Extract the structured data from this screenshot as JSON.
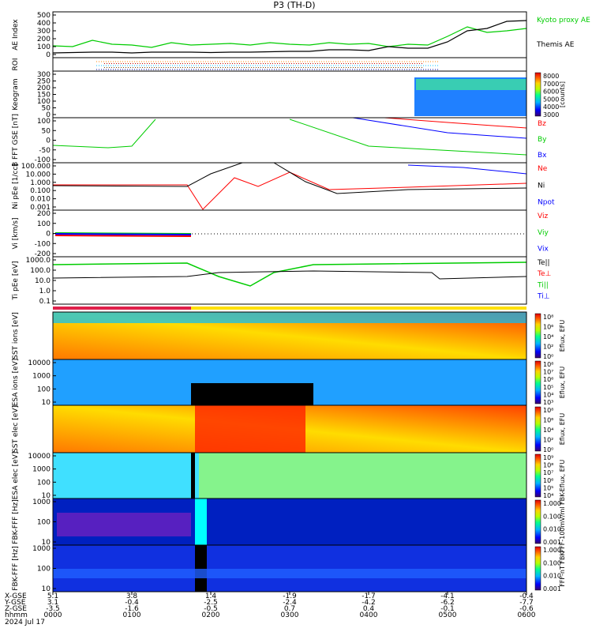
{
  "title": "P3 (TH-D)",
  "footer": {
    "row_labels": [
      "X-GSE",
      "Y-GSE",
      "Z-GSE",
      "hhmm",
      "2024 Jul 17"
    ],
    "ticks": [
      {
        "x": "5.1",
        "y": "3.1",
        "z": "-3.5",
        "t": "0000"
      },
      {
        "x": "3.8",
        "y": "-0.4",
        "z": "-1.6",
        "t": "0100"
      },
      {
        "x": "1.4",
        "y": "-2.5",
        "z": "-0.5",
        "t": "0200"
      },
      {
        "x": "-1.9",
        "y": "-2.4",
        "z": "0.7",
        "t": "0300"
      },
      {
        "x": "-1.7",
        "y": "-4.2",
        "z": "0.4",
        "t": "0400"
      },
      {
        "x": "-4.1",
        "y": "-6.2",
        "z": "-0.1",
        "t": "0500"
      },
      {
        "x": "-0.4",
        "y": "-7.7",
        "z": "-0.6",
        "t": "0600"
      }
    ]
  },
  "chart_data": [
    {
      "type": "line",
      "panel": "ae",
      "ylabel": "AE Index",
      "yticks": [
        "500",
        "400",
        "300",
        "200",
        "100",
        "0"
      ],
      "ylim": [
        0,
        500
      ],
      "legend": [
        {
          "name": "Kyoto proxy AE",
          "color": "#00cc00"
        },
        {
          "name": "Themis AE",
          "color": "#000000"
        }
      ],
      "x_hours": [
        0,
        0.25,
        0.5,
        0.75,
        1,
        1.25,
        1.5,
        1.75,
        2,
        2.25,
        2.5,
        2.75,
        3,
        3.25,
        3.5,
        3.75,
        4,
        4.25,
        4.5,
        4.75,
        5,
        5.25,
        5.5,
        5.75,
        6
      ],
      "series": [
        {
          "name": "Kyoto proxy AE",
          "color": "#00cc00",
          "values": [
            110,
            100,
            180,
            130,
            120,
            90,
            150,
            120,
            130,
            140,
            120,
            150,
            130,
            120,
            150,
            130,
            140,
            100,
            130,
            120,
            230,
            350,
            280,
            300,
            330
          ]
        },
        {
          "name": "Themis AE",
          "color": "#000000",
          "values": [
            20,
            25,
            30,
            30,
            20,
            30,
            30,
            30,
            25,
            30,
            30,
            35,
            40,
            40,
            60,
            60,
            50,
            100,
            80,
            80,
            160,
            300,
            330,
            420,
            430
          ]
        }
      ]
    },
    {
      "type": "heatmap",
      "panel": "roi",
      "ylabel": "ROI"
    },
    {
      "type": "heatmap",
      "panel": "keogram",
      "ylabel": "Keogram",
      "yticks": [
        "300",
        "250",
        "200",
        "150",
        "100",
        "50",
        "0"
      ],
      "colorbar": {
        "label": "[counts]",
        "ticks": [
          "8000",
          "7000",
          "6000",
          "5000",
          "4000",
          "3000"
        ]
      }
    },
    {
      "type": "line",
      "panel": "bfield",
      "ylabel": "B FFT GSE [nT]",
      "yticks": [
        "100",
        "50",
        "0",
        "-50",
        "-100"
      ],
      "ylim": [
        -100,
        100
      ],
      "legend": [
        {
          "name": "Bz",
          "color": "#ff0000"
        },
        {
          "name": "By",
          "color": "#00cc00"
        },
        {
          "name": "Bx",
          "color": "#0000ff"
        }
      ]
    },
    {
      "type": "line",
      "panel": "density",
      "ylabel": "Ni pEe [1/cc]",
      "yticks": [
        "100.000",
        "10.000",
        "1.000",
        "0.100",
        "0.010",
        "0.001"
      ],
      "legend": [
        {
          "name": "Ne",
          "color": "#ff0000"
        },
        {
          "name": "Ni",
          "color": "#000000"
        },
        {
          "name": "Npot",
          "color": "#0000ff"
        }
      ]
    },
    {
      "type": "line",
      "panel": "velocity",
      "ylabel": "Vi [km/s]",
      "yticks": [
        "200",
        "100",
        "0",
        "-100",
        "-200"
      ],
      "ylim": [
        -200,
        200
      ],
      "legend": [
        {
          "name": "Viz",
          "color": "#ff0000"
        },
        {
          "name": "Viy",
          "color": "#00cc00"
        },
        {
          "name": "Vix",
          "color": "#0000ff"
        }
      ]
    },
    {
      "type": "line",
      "panel": "temperature",
      "ylabel": "Ti pEe [eV]",
      "yticks": [
        "1000.0",
        "100.0",
        "10.0",
        "1.0",
        "0.1"
      ],
      "legend": [
        {
          "name": "Te||",
          "color": "#000000"
        },
        {
          "name": "Te⊥",
          "color": "#ff0000"
        },
        {
          "name": "Ti||",
          "color": "#00cc00"
        },
        {
          "name": "Ti⊥",
          "color": "#0000ff"
        }
      ]
    },
    {
      "type": "heatmap",
      "panel": "sst_i",
      "ylabel": "SST ions [eV]",
      "colorbar": {
        "label": "Eflux, EFU",
        "ticks": [
          "10⁸",
          "10⁶",
          "10⁴",
          "10²",
          "10⁰"
        ]
      }
    },
    {
      "type": "heatmap",
      "panel": "esa_i",
      "ylabel": "ESA ions [eV]",
      "yticks": [
        "10000",
        "1000",
        "100",
        "10"
      ],
      "colorbar": {
        "label": "Eflux, EFU",
        "ticks": [
          "10⁸",
          "10⁷",
          "10⁶",
          "10⁵",
          "10⁴",
          "10³"
        ]
      }
    },
    {
      "type": "heatmap",
      "panel": "sst_e",
      "ylabel": "SST elec [eV]",
      "colorbar": {
        "label": "Eflux, EFU",
        "ticks": [
          "10⁸",
          "10⁶",
          "10⁴",
          "10²",
          "10⁰"
        ]
      }
    },
    {
      "type": "heatmap",
      "panel": "esa_e",
      "ylabel": "ESA elec [eV]",
      "yticks": [
        "10000",
        "1000",
        "100",
        "10"
      ],
      "colorbar": {
        "label": "Eflux, EFU",
        "ticks": [
          "10⁹",
          "10⁸",
          "10⁷",
          "10⁶",
          "10⁵",
          "10⁴"
        ]
      }
    },
    {
      "type": "heatmap",
      "panel": "fbk_b",
      "ylabel": "FBK-FFF [Hz]",
      "yticks": [
        "1000",
        "100",
        "10"
      ],
      "colorbar": {
        "label": "FFF-100mV/ml FBK-",
        "ticks": [
          "1.000",
          "0.100",
          "0.010",
          "0.001"
        ]
      }
    },
    {
      "type": "heatmap",
      "panel": "fbk_e",
      "ylabel": "FBK-FFF [Hz]",
      "yticks": [
        "1000",
        "100",
        "10"
      ],
      "colorbar": {
        "label": "FFF-nT FBK-",
        "ticks": [
          "1.000",
          "0.100",
          "0.010",
          "0.001"
        ]
      }
    }
  ]
}
